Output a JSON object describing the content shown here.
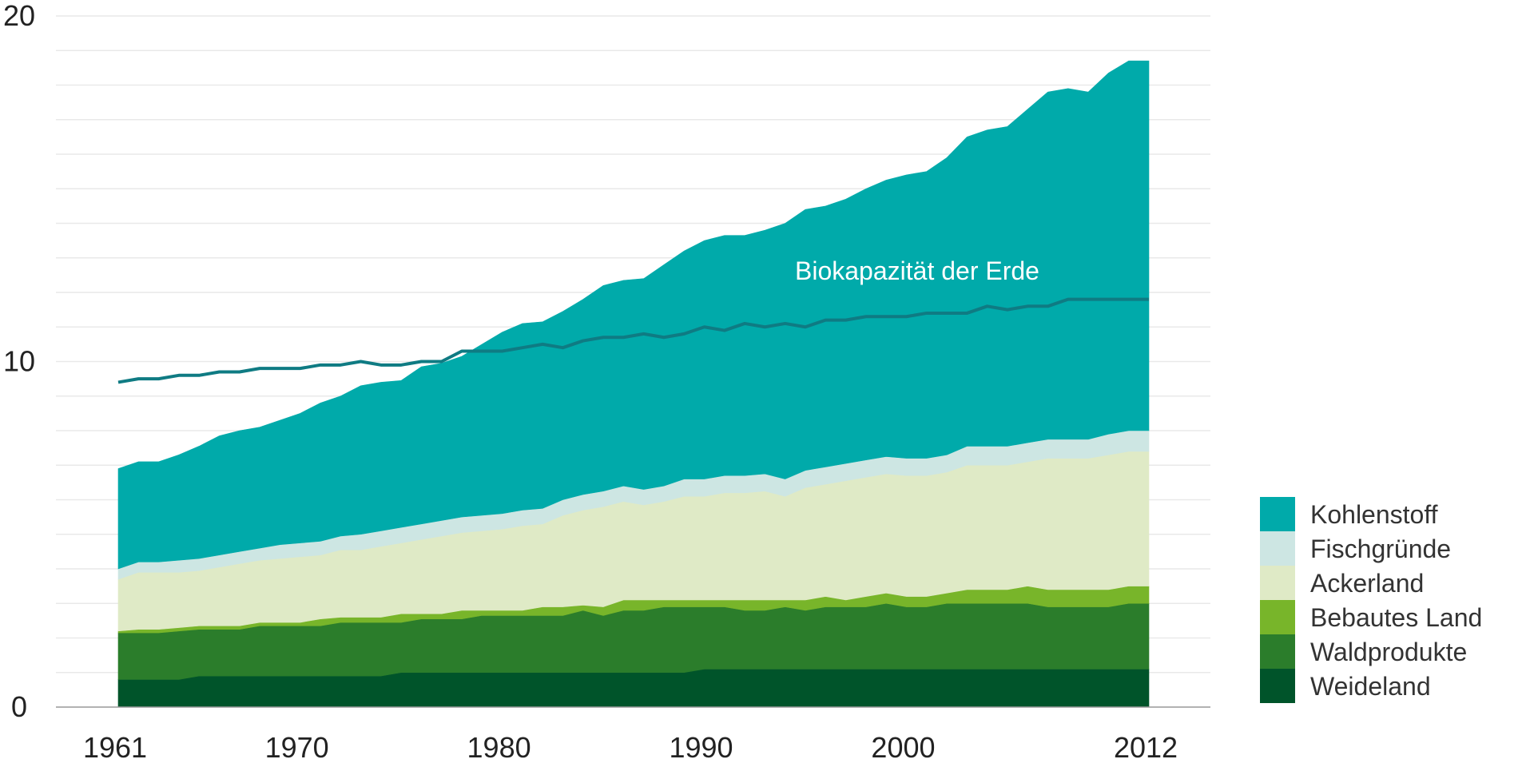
{
  "chart_data": {
    "type": "area",
    "stacked": true,
    "ylim": [
      0,
      20
    ],
    "xlim": [
      1958,
      2017
    ],
    "x_tick_labels": [
      "1961",
      "1970",
      "1980",
      "1990",
      "2000",
      "2012"
    ],
    "y_tick_labels": [
      "0",
      "10",
      "20"
    ],
    "legend_position": "right-bottom",
    "grid": true,
    "x": [
      1961,
      1962,
      1963,
      1964,
      1965,
      1966,
      1967,
      1968,
      1969,
      1970,
      1971,
      1972,
      1973,
      1974,
      1975,
      1976,
      1977,
      1978,
      1979,
      1980,
      1981,
      1982,
      1983,
      1984,
      1985,
      1986,
      1987,
      1988,
      1989,
      1990,
      1991,
      1992,
      1993,
      1994,
      1995,
      1996,
      1997,
      1998,
      1999,
      2000,
      2001,
      2002,
      2003,
      2004,
      2005,
      2006,
      2007,
      2008,
      2009,
      2010,
      2011,
      2012
    ],
    "series": [
      {
        "name": "Weideland",
        "color": "#00542a",
        "values": [
          0.8,
          0.8,
          0.8,
          0.8,
          0.9,
          0.9,
          0.9,
          0.9,
          0.9,
          0.9,
          0.9,
          0.9,
          0.9,
          0.9,
          1.0,
          1.0,
          1.0,
          1.0,
          1.0,
          1.0,
          1.0,
          1.0,
          1.0,
          1.0,
          1.0,
          1.0,
          1.0,
          1.0,
          1.0,
          1.1,
          1.1,
          1.1,
          1.1,
          1.1,
          1.1,
          1.1,
          1.1,
          1.1,
          1.1,
          1.1,
          1.1,
          1.1,
          1.1,
          1.1,
          1.1,
          1.1,
          1.1,
          1.1,
          1.1,
          1.1,
          1.1,
          1.1
        ]
      },
      {
        "name": "Waldprodukte",
        "color": "#2b7d2b",
        "values": [
          1.35,
          1.35,
          1.35,
          1.4,
          1.35,
          1.35,
          1.35,
          1.45,
          1.45,
          1.45,
          1.45,
          1.55,
          1.55,
          1.55,
          1.45,
          1.55,
          1.55,
          1.55,
          1.65,
          1.65,
          1.65,
          1.65,
          1.65,
          1.8,
          1.65,
          1.8,
          1.8,
          1.9,
          1.9,
          1.8,
          1.8,
          1.7,
          1.7,
          1.8,
          1.7,
          1.8,
          1.8,
          1.8,
          1.9,
          1.8,
          1.8,
          1.9,
          1.9,
          1.9,
          1.9,
          1.9,
          1.8,
          1.8,
          1.8,
          1.8,
          1.9,
          1.9
        ]
      },
      {
        "name": "Bebautes Land",
        "color": "#78b52a",
        "values": [
          0.05,
          0.1,
          0.1,
          0.1,
          0.1,
          0.1,
          0.1,
          0.1,
          0.1,
          0.1,
          0.2,
          0.15,
          0.15,
          0.15,
          0.25,
          0.15,
          0.15,
          0.25,
          0.15,
          0.15,
          0.15,
          0.25,
          0.25,
          0.15,
          0.25,
          0.3,
          0.3,
          0.2,
          0.2,
          0.2,
          0.2,
          0.3,
          0.3,
          0.2,
          0.3,
          0.3,
          0.2,
          0.3,
          0.3,
          0.3,
          0.3,
          0.3,
          0.4,
          0.4,
          0.4,
          0.5,
          0.5,
          0.5,
          0.5,
          0.5,
          0.5,
          0.5
        ]
      },
      {
        "name": "Ackerland",
        "color": "#dfeac6",
        "values": [
          1.5,
          1.65,
          1.65,
          1.6,
          1.6,
          1.7,
          1.8,
          1.8,
          1.85,
          1.9,
          1.85,
          1.95,
          1.95,
          2.05,
          2.05,
          2.15,
          2.25,
          2.25,
          2.3,
          2.35,
          2.45,
          2.4,
          2.65,
          2.75,
          2.9,
          2.85,
          2.75,
          2.85,
          3.0,
          3.0,
          3.1,
          3.1,
          3.15,
          3.0,
          3.25,
          3.25,
          3.45,
          3.45,
          3.45,
          3.5,
          3.5,
          3.5,
          3.6,
          3.6,
          3.6,
          3.6,
          3.8,
          3.8,
          3.8,
          3.9,
          3.9,
          3.9
        ]
      },
      {
        "name": "Fischgründe",
        "color": "#cde6e3",
        "values": [
          0.3,
          0.3,
          0.3,
          0.35,
          0.35,
          0.35,
          0.35,
          0.35,
          0.4,
          0.4,
          0.4,
          0.4,
          0.45,
          0.45,
          0.45,
          0.45,
          0.45,
          0.45,
          0.45,
          0.45,
          0.45,
          0.45,
          0.45,
          0.45,
          0.45,
          0.45,
          0.45,
          0.45,
          0.5,
          0.5,
          0.5,
          0.5,
          0.5,
          0.5,
          0.5,
          0.5,
          0.5,
          0.5,
          0.5,
          0.5,
          0.5,
          0.5,
          0.55,
          0.55,
          0.55,
          0.55,
          0.55,
          0.55,
          0.55,
          0.6,
          0.6,
          0.6
        ]
      },
      {
        "name": "Kohlenstoff",
        "color": "#00aaaa",
        "values": [
          2.9,
          2.9,
          2.9,
          3.05,
          3.25,
          3.45,
          3.5,
          3.5,
          3.6,
          3.75,
          4.0,
          4.05,
          4.3,
          4.3,
          4.25,
          4.55,
          4.55,
          4.65,
          4.95,
          5.25,
          5.4,
          5.4,
          5.45,
          5.65,
          5.95,
          5.95,
          6.1,
          6.4,
          6.6,
          6.9,
          6.95,
          6.95,
          7.05,
          7.4,
          7.55,
          7.55,
          7.65,
          7.85,
          8.0,
          8.2,
          8.3,
          8.6,
          8.95,
          9.15,
          9.25,
          9.65,
          10.05,
          10.15,
          10.05,
          10.45,
          10.7,
          10.7
        ]
      }
    ],
    "biocapacity": {
      "name": "Biokapazität der Erde",
      "color": "#0f7b83",
      "values": [
        9.4,
        9.5,
        9.5,
        9.6,
        9.6,
        9.7,
        9.7,
        9.8,
        9.8,
        9.8,
        9.9,
        9.9,
        10.0,
        9.9,
        9.9,
        10.0,
        10.0,
        10.3,
        10.3,
        10.3,
        10.4,
        10.5,
        10.4,
        10.6,
        10.7,
        10.7,
        10.8,
        10.7,
        10.8,
        11.0,
        10.9,
        11.1,
        11.0,
        11.1,
        11.0,
        11.2,
        11.2,
        11.3,
        11.3,
        11.3,
        11.4,
        11.4,
        11.4,
        11.6,
        11.5,
        11.6,
        11.6,
        11.8,
        11.8,
        11.8,
        11.8,
        11.8
      ]
    }
  },
  "legend": [
    {
      "label": "Kohlenstoff",
      "color": "#00aaaa"
    },
    {
      "label": "Fischgründe",
      "color": "#cde6e3"
    },
    {
      "label": "Ackerland",
      "color": "#dfeac6"
    },
    {
      "label": "Bebautes Land",
      "color": "#78b52a"
    },
    {
      "label": "Waldprodukte",
      "color": "#2b7d2b"
    },
    {
      "label": "Weideland",
      "color": "#00542a"
    }
  ]
}
